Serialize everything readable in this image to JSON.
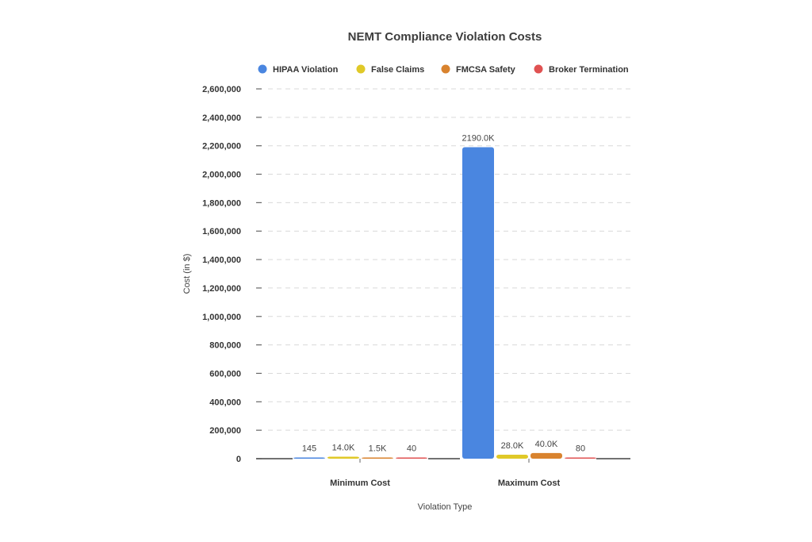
{
  "chart_data": {
    "type": "bar",
    "title": "NEMT Compliance Violation Costs",
    "xlabel": "Violation Type",
    "ylabel": "Cost (in $)",
    "ylim": [
      0,
      2600000
    ],
    "yticks": [
      0,
      200000,
      400000,
      600000,
      800000,
      1000000,
      1200000,
      1400000,
      1600000,
      1800000,
      2000000,
      2200000,
      2400000,
      2600000
    ],
    "ytick_labels": [
      "0",
      "200,000",
      "400,000",
      "600,000",
      "800,000",
      "1,000,000",
      "1,200,000",
      "1,400,000",
      "1,600,000",
      "1,800,000",
      "2,000,000",
      "2,200,000",
      "2,400,000",
      "2,600,000"
    ],
    "grid": true,
    "legend_position": "top",
    "categories": [
      "Minimum Cost",
      "Maximum Cost"
    ],
    "series": [
      {
        "name": "HIPAA Violation",
        "color": "#4a86e0",
        "values": [
          145,
          2190000
        ],
        "labels": [
          "145",
          "2190.0K"
        ]
      },
      {
        "name": "False Claims",
        "color": "#e0c928",
        "values": [
          14000,
          28000
        ],
        "labels": [
          "14.0K",
          "28.0K"
        ]
      },
      {
        "name": "FMCSA Safety",
        "color": "#d9832e",
        "values": [
          1500,
          40000
        ],
        "labels": [
          "1.5K",
          "40.0K"
        ]
      },
      {
        "name": "Broker Termination",
        "color": "#e05252",
        "values": [
          40,
          80
        ],
        "labels": [
          "40",
          "80"
        ]
      }
    ]
  }
}
